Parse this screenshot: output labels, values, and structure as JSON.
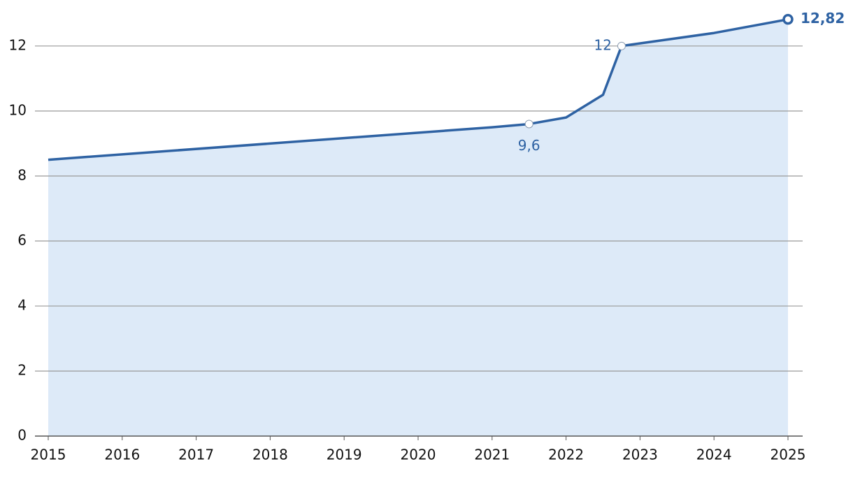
{
  "chart_data": {
    "type": "area",
    "x": [
      2015,
      2021,
      2021.5,
      2022,
      2022.5,
      2022.75,
      2024,
      2025
    ],
    "values": [
      8.5,
      9.5,
      9.6,
      9.8,
      10.5,
      12,
      12.4,
      12.82
    ],
    "value_labels": [
      null,
      null,
      "9,6",
      null,
      null,
      "12",
      null,
      "12,82"
    ],
    "color": "#2e62a3",
    "fill": "#ddeaf8",
    "xlim": [
      2015,
      2025
    ],
    "xticks": [
      2015,
      2016,
      2017,
      2018,
      2019,
      2020,
      2021,
      2022,
      2023,
      2024,
      2025
    ],
    "ylim": [
      0,
      13.2
    ],
    "yticks": [
      0,
      2,
      4,
      6,
      8,
      10,
      12
    ],
    "grid": true
  }
}
